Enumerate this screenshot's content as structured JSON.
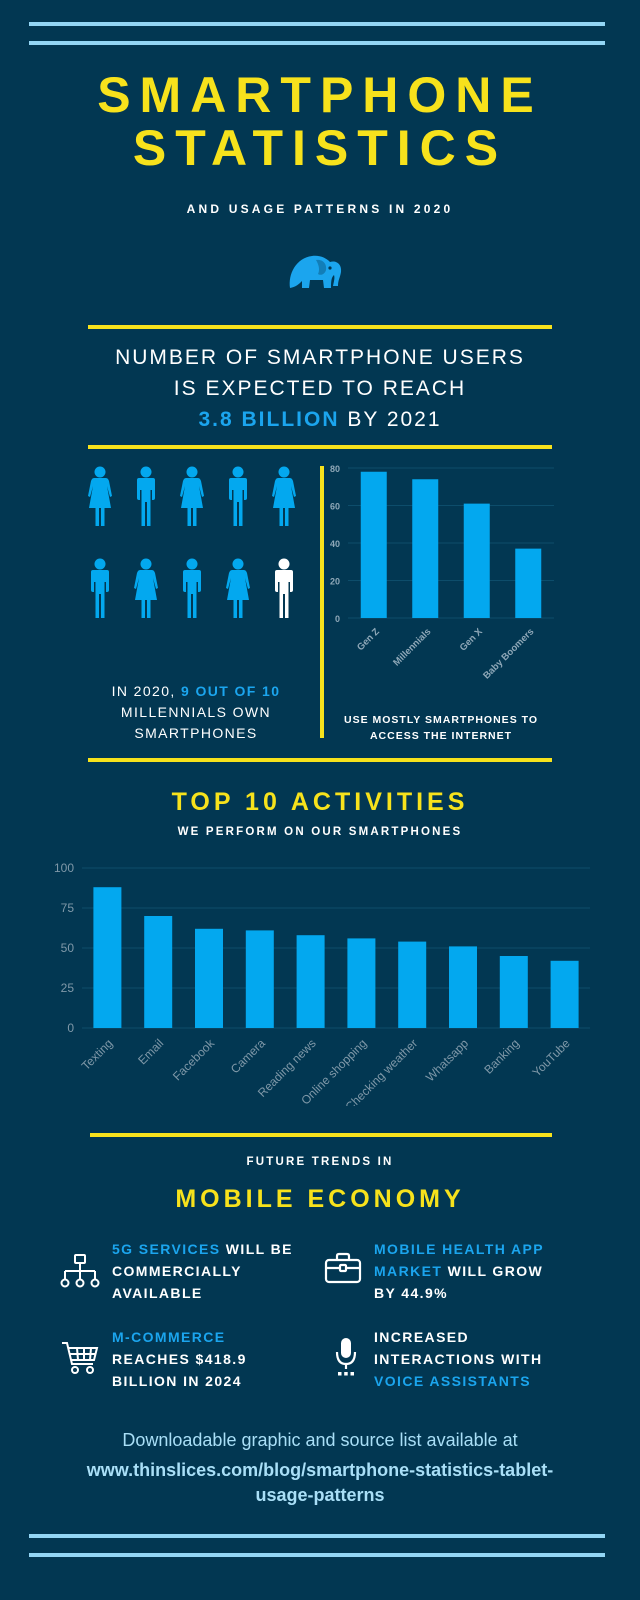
{
  "header": {
    "title_line1": "SMARTPHONE",
    "title_line2": "STATISTICS",
    "subtitle": "AND USAGE PATTERNS IN 2020",
    "logo_icon": "elephant-icon"
  },
  "users": {
    "line1": "NUMBER OF SMARTPHONE USERS",
    "line2": "IS EXPECTED TO REACH",
    "highlight": "3.8 BILLION",
    "line3_suffix": "BY 2021"
  },
  "millennials": {
    "prefix": "IN 2020,",
    "highlight": "9 OUT OF 10",
    "line2": "MILLENNIALS OWN",
    "line3": "SMARTPHONES",
    "figures": [
      "female",
      "male",
      "female",
      "male",
      "female",
      "male",
      "female",
      "male",
      "female",
      "male-white"
    ],
    "highlight_color": "#1ba5ee"
  },
  "internet_caption": {
    "line1": "USE MOSTLY SMARTPHONES TO",
    "line2": "ACCESS THE INTERNET"
  },
  "chart_data": [
    {
      "type": "bar",
      "title": "",
      "categories": [
        "Gen Z",
        "Millennials",
        "Gen X",
        "Baby Boomers"
      ],
      "values": [
        78,
        74,
        61,
        37
      ],
      "ylim": [
        0,
        80
      ],
      "yticks": [
        0,
        20,
        40,
        60,
        80
      ],
      "xlabel": "",
      "ylabel": "",
      "grid": true,
      "bar_color": "#03a8ef"
    },
    {
      "type": "bar",
      "title": "TOP 10 ACTIVITIES",
      "subtitle": "WE PERFORM ON OUR SMARTPHONES",
      "categories": [
        "Texting",
        "Email",
        "Facebook",
        "Camera",
        "Reading news",
        "Online shopping",
        "Checking weather",
        "Whatsapp",
        "Banking",
        "YouTube"
      ],
      "values": [
        88,
        70,
        62,
        61,
        58,
        56,
        54,
        51,
        45,
        42
      ],
      "ylim": [
        0,
        100
      ],
      "yticks": [
        0,
        25,
        50,
        75,
        100
      ],
      "xlabel": "",
      "ylabel": "",
      "grid": true,
      "bar_color": "#03a8ef"
    }
  ],
  "trends": {
    "kicker": "FUTURE TRENDS IN",
    "heading": "MOBILE ECONOMY",
    "items": [
      {
        "icon": "network-icon",
        "lines": [
          [
            "5G SERVICES",
            " WILL BE"
          ],
          [
            "COMMERCIALLY"
          ],
          [
            "AVAILABLE"
          ]
        ]
      },
      {
        "icon": "briefcase-icon",
        "lines": [
          [
            "MOBILE HEALTH APP"
          ],
          [
            "MARKET",
            " WILL GROW"
          ],
          [
            "BY 44.9%"
          ]
        ]
      },
      {
        "icon": "shopping-cart-icon",
        "lines": [
          [
            "M-COMMERCE"
          ],
          [
            "REACHES $418.9"
          ],
          [
            "BILLION IN 2024"
          ]
        ]
      },
      {
        "icon": "microphone-icon",
        "lines": [
          [
            "INCREASED"
          ],
          [
            "INTERACTIONS WITH"
          ],
          [
            "VOICE ASSISTANTS"
          ]
        ]
      }
    ]
  },
  "footer": {
    "text": "Downloadable graphic and source list available at",
    "link_line1": "www.thinslices.com/blog/smartphone-statistics-tablet-",
    "link_line2": "usage-patterns"
  },
  "colors": {
    "background": "#023752",
    "yellow": "#f7e21c",
    "blue": "#1ba5ee",
    "light_blue": "#93d6f5"
  }
}
